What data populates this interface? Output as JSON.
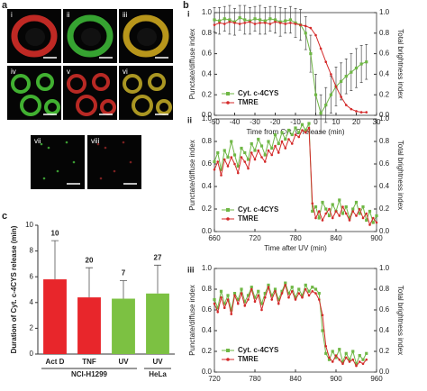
{
  "panel_a": {
    "figure_label": "a",
    "images": [
      "i",
      "ii",
      "iii",
      "iv",
      "v",
      "vi",
      "vii",
      "viii"
    ]
  },
  "chart_data": [
    {
      "type": "line",
      "figure_label": "b",
      "panel": "i",
      "xlabel": "Time from Cyt. C release (min)",
      "ylabel": "Punctate/diffuse index",
      "y2label": "Total brightness index",
      "x": [
        -50,
        -47.5,
        -45,
        -42.5,
        -40,
        -37.5,
        -35,
        -32.5,
        -30,
        -27.5,
        -25,
        -22.5,
        -20,
        -17.5,
        -15,
        -12.5,
        -10,
        -7.5,
        -5,
        -2.5,
        0,
        2.5,
        5,
        7.5,
        10,
        12.5,
        15,
        17.5,
        20,
        22.5,
        25
      ],
      "series": [
        {
          "name": "Cyt. c-4CYS",
          "color": "#6fb745",
          "marker": "square",
          "values": [
            0.93,
            0.92,
            0.94,
            0.93,
            0.91,
            0.95,
            0.93,
            0.92,
            0.94,
            0.93,
            0.92,
            0.94,
            0.93,
            0.91,
            0.92,
            0.93,
            0.9,
            0.88,
            0.8,
            0.6,
            0.2,
            0.02,
            0.1,
            0.2,
            0.28,
            0.33,
            0.38,
            0.42,
            0.46,
            0.5,
            0.52
          ],
          "errors": [
            0.12,
            0.13,
            0.12,
            0.14,
            0.13,
            0.12,
            0.14,
            0.13,
            0.12,
            0.14,
            0.13,
            0.12,
            0.13,
            0.14,
            0.12,
            0.13,
            0.14,
            0.15,
            0.16,
            0.18,
            0.2,
            0.18,
            0.17,
            0.18,
            0.19,
            0.18,
            0.17,
            0.18,
            0.19,
            0.18,
            0.17
          ]
        },
        {
          "name": "TMRE",
          "color": "#d42a2a",
          "marker": "circle",
          "axis": "y2",
          "values": [
            0.88,
            0.9,
            0.89,
            0.91,
            0.9,
            0.89,
            0.9,
            0.91,
            0.89,
            0.9,
            0.9,
            0.89,
            0.91,
            0.9,
            0.89,
            0.9,
            0.89,
            0.88,
            0.87,
            0.85,
            0.78,
            0.65,
            0.52,
            0.4,
            0.28,
            0.18,
            0.1,
            0.06,
            0.04,
            0.03,
            0.03
          ]
        }
      ],
      "xlim": [
        -50,
        30
      ],
      "xticks": [
        -50,
        -40,
        -30,
        -20,
        -10,
        0,
        10,
        20,
        30
      ],
      "ylim": [
        0,
        1
      ],
      "yticks": [
        {
          "value": 0,
          "label": "0.0"
        },
        0.2,
        0.4,
        0.6,
        0.8,
        {
          "value": 1,
          "label": "1.0"
        }
      ],
      "y2lim": [
        0,
        1
      ],
      "y2ticks": [
        {
          "value": 0,
          "label": "0.0"
        },
        0.2,
        0.4,
        0.6,
        0.8,
        {
          "value": 1,
          "label": "1.0"
        }
      ],
      "legend": "lower left"
    },
    {
      "type": "line",
      "panel": "ii",
      "xlabel": "Time after UV (min)",
      "ylabel": "Punctate/diffuse index",
      "y2label": "Total brightness index",
      "x": [
        660,
        665,
        670,
        675,
        680,
        685,
        690,
        695,
        700,
        705,
        710,
        715,
        720,
        725,
        730,
        735,
        740,
        745,
        750,
        755,
        760,
        765,
        770,
        775,
        780,
        785,
        790,
        795,
        800,
        805,
        810,
        815,
        820,
        825,
        830,
        835,
        840,
        845,
        850,
        855,
        860,
        865,
        870,
        875,
        880,
        885,
        890,
        895,
        900
      ],
      "series": [
        {
          "name": "Cyt. c-4CYS",
          "color": "#6fb745",
          "marker": "square",
          "values": [
            0.62,
            0.7,
            0.55,
            0.72,
            0.66,
            0.8,
            0.68,
            0.58,
            0.74,
            0.7,
            0.64,
            0.78,
            0.72,
            0.82,
            0.76,
            0.68,
            0.8,
            0.74,
            0.86,
            0.78,
            0.88,
            0.82,
            0.9,
            0.86,
            0.92,
            0.88,
            0.95,
            0.9,
            0.96,
            0.18,
            0.22,
            0.12,
            0.26,
            0.2,
            0.14,
            0.24,
            0.18,
            0.28,
            0.16,
            0.22,
            0.12,
            0.2,
            0.26,
            0.16,
            0.22,
            0.1,
            0.18,
            0.08,
            0.14
          ]
        },
        {
          "name": "TMRE",
          "color": "#d42a2a",
          "marker": "circle",
          "axis": "y2",
          "values": [
            0.55,
            0.62,
            0.5,
            0.64,
            0.58,
            0.66,
            0.6,
            0.52,
            0.66,
            0.62,
            0.56,
            0.7,
            0.64,
            0.72,
            0.66,
            0.62,
            0.72,
            0.68,
            0.76,
            0.7,
            0.8,
            0.74,
            0.82,
            0.78,
            0.86,
            0.84,
            0.9,
            0.88,
            0.92,
            0.25,
            0.12,
            0.18,
            0.1,
            0.16,
            0.2,
            0.12,
            0.18,
            0.14,
            0.22,
            0.16,
            0.1,
            0.18,
            0.14,
            0.2,
            0.12,
            0.16,
            0.06,
            0.12,
            0.08
          ]
        }
      ],
      "xlim": [
        660,
        900
      ],
      "xticks": [
        660,
        720,
        780,
        840,
        900
      ],
      "ylim": [
        0,
        1
      ],
      "yticks": [
        {
          "value": 0,
          "label": "0.0"
        },
        0.2,
        0.4,
        0.6,
        0.8,
        {
          "value": 1,
          "label": "1.0"
        }
      ],
      "y2lim": [
        0,
        1
      ],
      "y2ticks": [
        {
          "value": 0,
          "label": "0.0"
        },
        0.2,
        0.4,
        0.6,
        0.8,
        {
          "value": 1,
          "label": "1.0"
        }
      ],
      "legend": "lower left"
    },
    {
      "type": "line",
      "panel": "iii",
      "ylabel": "Punctate/diffuse index",
      "y2label": "Total brightness index",
      "x": [
        720,
        725,
        730,
        735,
        740,
        745,
        750,
        755,
        760,
        765,
        770,
        775,
        780,
        785,
        790,
        795,
        800,
        805,
        810,
        815,
        820,
        825,
        830,
        835,
        840,
        845,
        850,
        855,
        860,
        865,
        870,
        875,
        880,
        885,
        890,
        895,
        900,
        905,
        910,
        915,
        920,
        925,
        930,
        935,
        940,
        945
      ],
      "series": [
        {
          "name": "Cyt. c-4CYS",
          "color": "#6fb745",
          "marker": "square",
          "values": [
            0.7,
            0.62,
            0.78,
            0.66,
            0.74,
            0.6,
            0.76,
            0.7,
            0.8,
            0.68,
            0.74,
            0.82,
            0.72,
            0.78,
            0.66,
            0.76,
            0.84,
            0.74,
            0.8,
            0.7,
            0.78,
            0.86,
            0.76,
            0.82,
            0.72,
            0.8,
            0.74,
            0.84,
            0.78,
            0.82,
            0.8,
            0.76,
            0.4,
            0.18,
            0.12,
            0.2,
            0.14,
            0.22,
            0.1,
            0.18,
            0.12,
            0.2,
            0.08,
            0.16,
            0.12,
            0.18
          ]
        },
        {
          "name": "TMRE",
          "color": "#d42a2a",
          "marker": "circle",
          "axis": "y2",
          "values": [
            0.66,
            0.58,
            0.72,
            0.62,
            0.7,
            0.56,
            0.74,
            0.66,
            0.76,
            0.64,
            0.7,
            0.8,
            0.68,
            0.74,
            0.6,
            0.72,
            0.82,
            0.7,
            0.78,
            0.66,
            0.76,
            0.84,
            0.72,
            0.78,
            0.7,
            0.76,
            0.72,
            0.8,
            0.74,
            0.78,
            0.76,
            0.7,
            0.55,
            0.25,
            0.14,
            0.1,
            0.16,
            0.12,
            0.08,
            0.14,
            0.1,
            0.12,
            0.06,
            0.1,
            0.08,
            0.12
          ]
        }
      ],
      "xlim": [
        720,
        960
      ],
      "xticks": [
        720,
        780,
        840,
        900,
        960
      ],
      "ylim": [
        0,
        1
      ],
      "yticks": [
        {
          "value": 0,
          "label": "0.0"
        },
        0.2,
        0.4,
        0.6,
        0.8,
        {
          "value": 1,
          "label": "1.0"
        }
      ],
      "y2lim": [
        0,
        1
      ],
      "y2ticks": [
        {
          "value": 0,
          "label": "0.0"
        },
        0.2,
        0.4,
        0.6,
        0.8,
        {
          "value": 1,
          "label": "1.0"
        }
      ],
      "legend": "lower left"
    },
    {
      "type": "bar",
      "figure_label": "c",
      "ylabel": "Duration of Cyt. c-4CYS release (min)",
      "categories": [
        "Act D",
        "TNF",
        "UV",
        "UV"
      ],
      "values": [
        5.8,
        4.4,
        4.3,
        4.7
      ],
      "errors": [
        3.0,
        2.3,
        1.4,
        2.2
      ],
      "colors": [
        "#e8262b",
        "#e8262b",
        "#7cc142",
        "#7cc142"
      ],
      "n_labels": [
        "10",
        "20",
        "7",
        "27"
      ],
      "groups": [
        {
          "name": "NCI-H1299",
          "size": 3
        },
        {
          "name": "HeLa",
          "size": 1
        }
      ],
      "ylim": [
        0,
        10
      ],
      "yticks": [
        0,
        2,
        4,
        6,
        8,
        10
      ]
    }
  ]
}
